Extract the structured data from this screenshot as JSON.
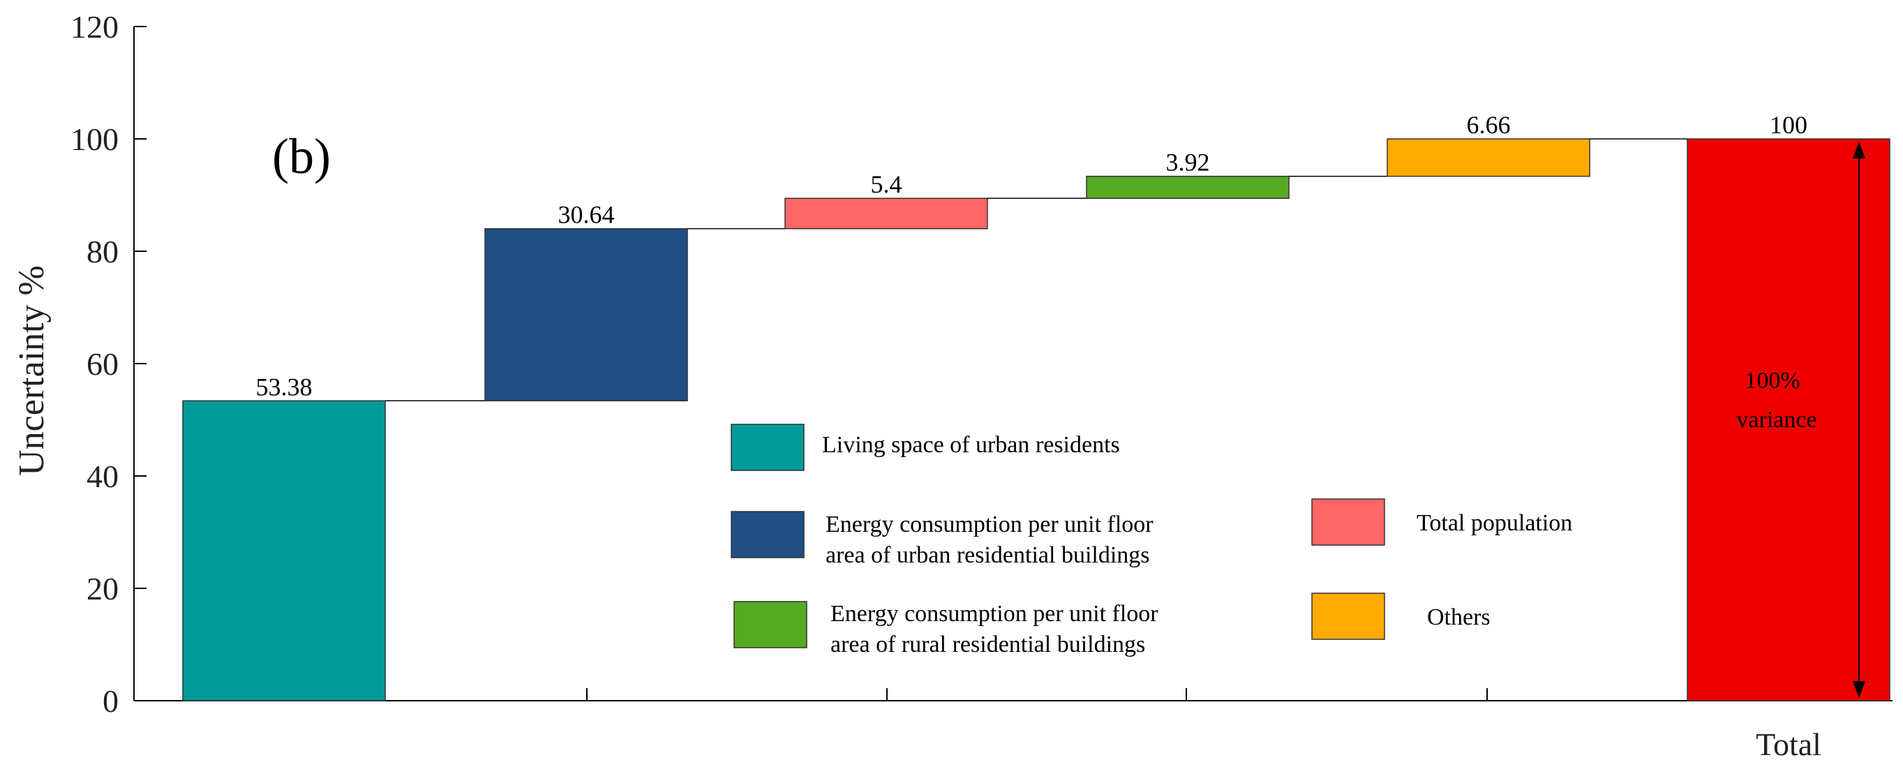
{
  "chart_data": {
    "type": "bar",
    "subtype": "waterfall",
    "panel_label": "(b)",
    "ylabel": "Uncertainty %",
    "xlabel": "",
    "ylim": [
      0,
      120
    ],
    "yticks": [
      0,
      20,
      40,
      60,
      80,
      100,
      120
    ],
    "series": [
      {
        "name": "Living space of urban residents",
        "value": 53.38,
        "label": "53.38",
        "color": "#009999"
      },
      {
        "name": "Energy consumption per unit floor area of urban residential buildings",
        "value": 30.64,
        "label": "30.64",
        "color": "#1f4e82"
      },
      {
        "name": "Total population",
        "value": 5.4,
        "label": "5.4",
        "color": "#ff6666"
      },
      {
        "name": "Energy consumption per unit floor area of rural residential buildings",
        "value": 3.92,
        "label": "3.92",
        "color": "#55aa22"
      },
      {
        "name": "Others",
        "value": 6.66,
        "label": "6.66",
        "color": "#ffaa00"
      }
    ],
    "total": {
      "category": "Total",
      "value": 100,
      "label": "100",
      "color": "#ee0000",
      "annotation": [
        "100%",
        "variance"
      ]
    },
    "legend": [
      {
        "lines": [
          "Living space of urban residents"
        ],
        "series_index": 0
      },
      {
        "lines": [
          "Energy consumption per unit floor",
          "area of urban residential buildings"
        ],
        "series_index": 1
      },
      {
        "lines": [
          "Energy consumption per unit floor",
          "area of rural residential buildings"
        ],
        "series_index": 3
      },
      {
        "lines": [
          "Total population"
        ],
        "series_index": 2
      },
      {
        "lines": [
          "Others"
        ],
        "series_index": 4
      }
    ]
  }
}
